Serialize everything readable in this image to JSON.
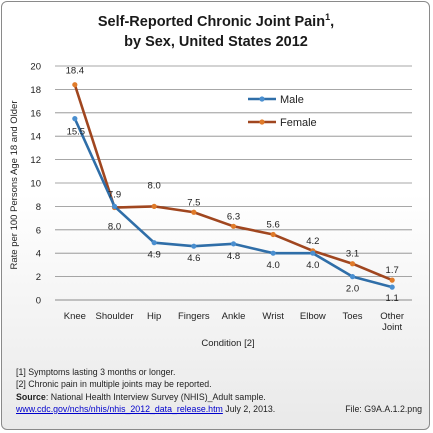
{
  "chart_data": {
    "type": "line",
    "title_main": "Self-Reported Chronic Joint Pain",
    "title_sup": "1",
    "title_line2": "by Sex, United States 2012",
    "xlabel": "Condition [2]",
    "ylabel": "Rate per 100 Persons Age 18 and Older",
    "ylim": [
      0,
      20
    ],
    "yticks": [
      "0",
      "2",
      "4",
      "6",
      "8",
      "10",
      "12",
      "14",
      "16",
      "18",
      "20"
    ],
    "categories": [
      "Knee",
      "Shoulder",
      "Hip",
      "Fingers",
      "Ankle",
      "Wrist",
      "Elbow",
      "Toes",
      "Other Joint"
    ],
    "legend_position": "top-right",
    "grid": "horizontal",
    "series": [
      {
        "name": "Male",
        "color": "#2f6ea8",
        "values": [
          15.5,
          8.0,
          4.9,
          4.6,
          4.8,
          4.0,
          4.0,
          2.0,
          1.1
        ],
        "labels": [
          "15.5",
          "8.0",
          "4.9",
          "4.6",
          "4.8",
          "4.0",
          "4.0",
          "2.0",
          "1.1"
        ]
      },
      {
        "name": "Female",
        "color": "#a0461f",
        "values": [
          18.4,
          7.9,
          8.0,
          7.5,
          6.3,
          5.6,
          4.2,
          3.1,
          1.7
        ],
        "labels": [
          "18.4",
          "7.9",
          "8.0",
          "7.5",
          "6.3",
          "5.6",
          "4.2",
          "3.1",
          "1.7"
        ]
      }
    ]
  },
  "notes": {
    "line1": "[1] Symptoms lasting 3 months or longer.",
    "line2": "[2] Chronic pain in multiple joints may be reported.",
    "source_label": "Source",
    "source_text": ": National Health Interview Survey (NHIS)_Adult sample.",
    "link": "www.cdc.gov/nchs/nhis/nhis_2012_data_release.htm",
    "date": " July 2, 2013.",
    "file": "File: G9A.A.1.2.png"
  }
}
